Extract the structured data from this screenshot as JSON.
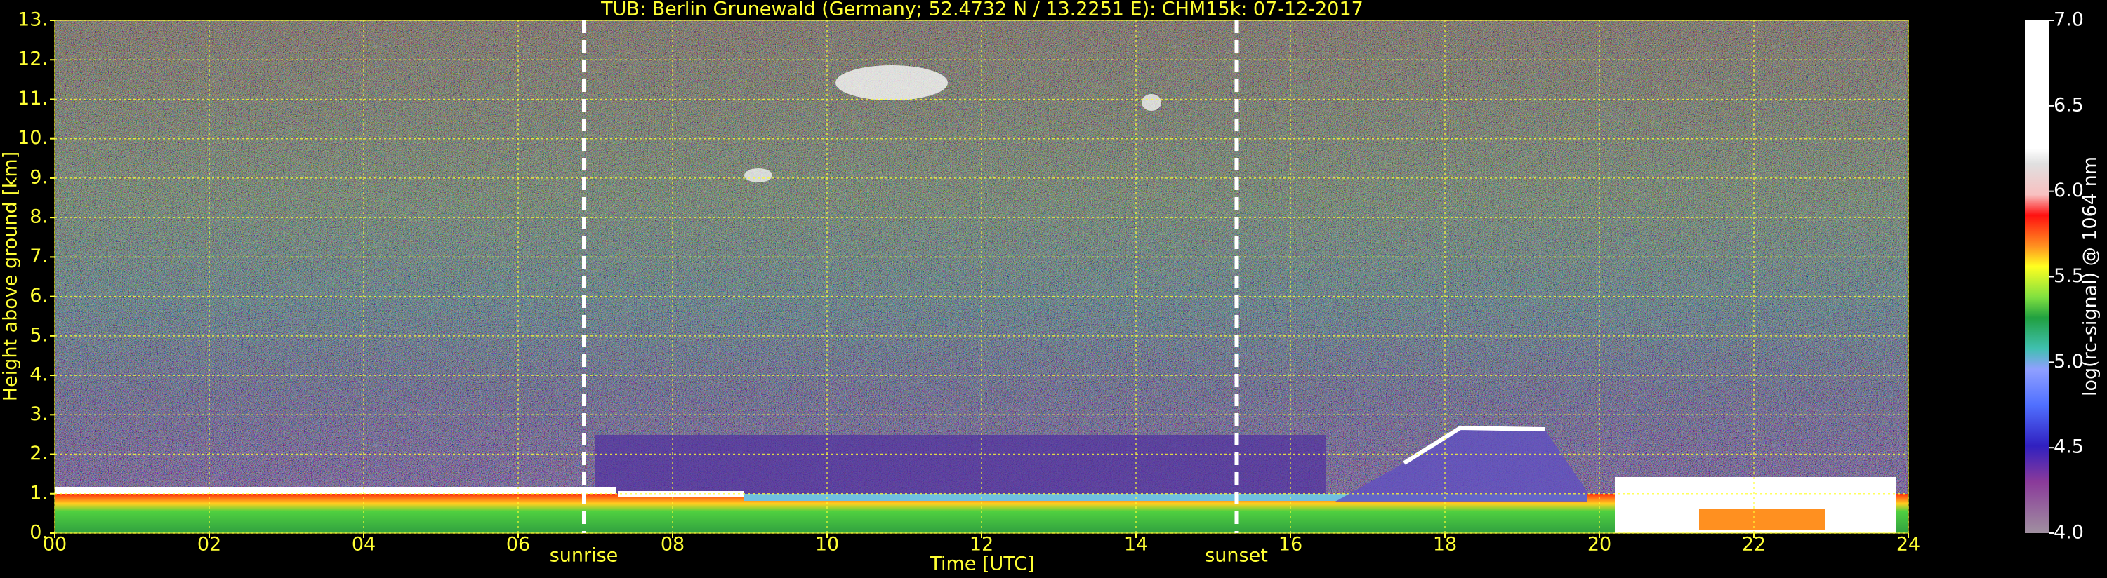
{
  "chart_data": {
    "type": "heatmap",
    "title": "TUB: Berlin Grunewald (Germany; 52.4732 N / 13.2251 E):    CHM15k: 07-12-2017",
    "xlabel": "Time [UTC]",
    "ylabel": "Height above ground [km]",
    "xlim": [
      0,
      24
    ],
    "xticks": [
      {
        "value": 0,
        "label": "00"
      },
      {
        "value": 2,
        "label": "02"
      },
      {
        "value": 4,
        "label": "04"
      },
      {
        "value": 6,
        "label": "06"
      },
      {
        "value": 8,
        "label": "08"
      },
      {
        "value": 10,
        "label": "10"
      },
      {
        "value": 12,
        "label": "12"
      },
      {
        "value": 14,
        "label": "14"
      },
      {
        "value": 16,
        "label": "16"
      },
      {
        "value": 18,
        "label": "18"
      },
      {
        "value": 20,
        "label": "20"
      },
      {
        "value": 22,
        "label": "22"
      },
      {
        "value": 24,
        "label": "24"
      }
    ],
    "ylim": [
      0,
      13
    ],
    "yticks": [
      {
        "value": 0,
        "label": "0."
      },
      {
        "value": 1,
        "label": "1."
      },
      {
        "value": 2,
        "label": "2."
      },
      {
        "value": 3,
        "label": "3."
      },
      {
        "value": 4,
        "label": "4."
      },
      {
        "value": 5,
        "label": "5."
      },
      {
        "value": 6,
        "label": "6."
      },
      {
        "value": 7,
        "label": "7."
      },
      {
        "value": 8,
        "label": "8."
      },
      {
        "value": 9,
        "label": "9."
      },
      {
        "value": 10,
        "label": "10."
      },
      {
        "value": 11,
        "label": "11."
      },
      {
        "value": 12,
        "label": "12."
      },
      {
        "value": 13,
        "label": "13."
      }
    ],
    "grid": true,
    "annotations": [
      {
        "x": 6.85,
        "label": "sunrise"
      },
      {
        "x": 15.3,
        "label": "sunset"
      }
    ],
    "colorbar": {
      "label": "log(rc-signal) @ 1064 nm",
      "clim": [
        4,
        7
      ],
      "ticks": [
        {
          "value": 4,
          "label": "4.0"
        },
        {
          "value": 4.5,
          "label": "4.5"
        },
        {
          "value": 5,
          "label": "5.0"
        },
        {
          "value": 5.5,
          "label": "5.5"
        },
        {
          "value": 6,
          "label": "6.0"
        },
        {
          "value": 6.5,
          "label": "6.5"
        },
        {
          "value": 7,
          "label": "7.0"
        }
      ]
    }
  }
}
